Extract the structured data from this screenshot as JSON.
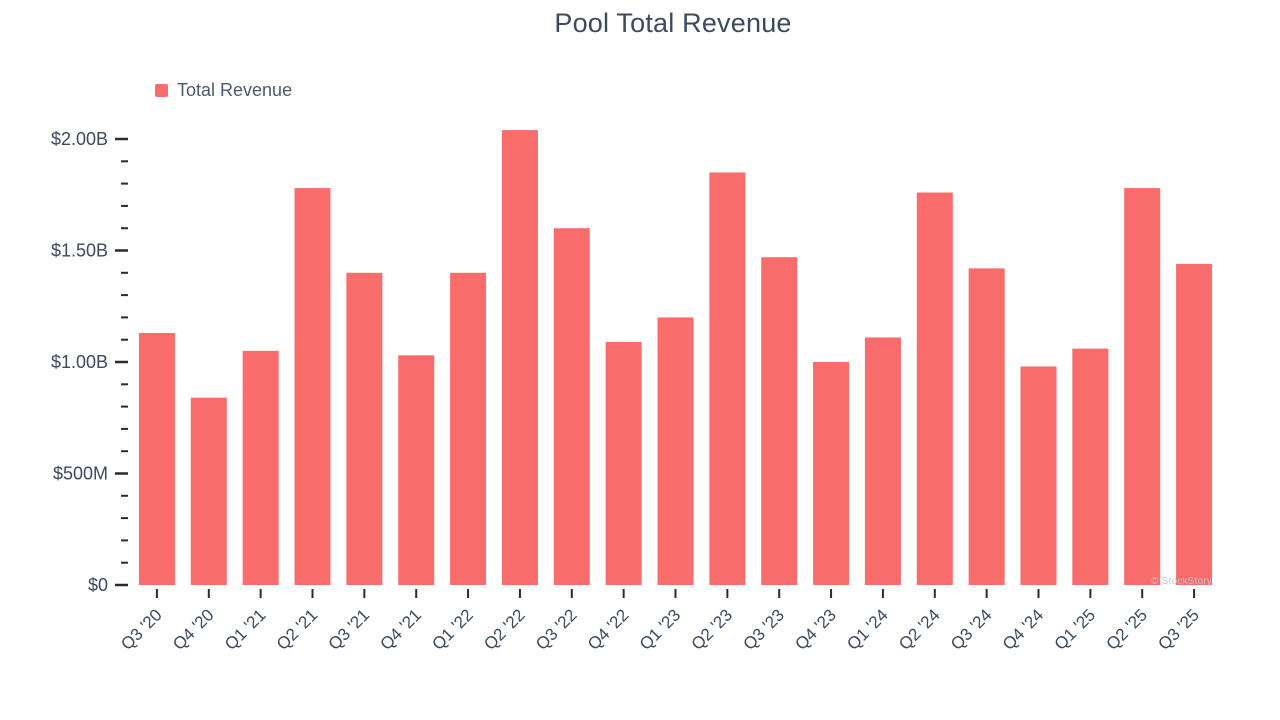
{
  "chart_data": {
    "type": "bar",
    "title": "Pool Total Revenue",
    "watermark": "© StockStory",
    "legend": {
      "label": "Total Revenue",
      "position": "top-left"
    },
    "categories": [
      "Q3 '20",
      "Q4 '20",
      "Q1 '21",
      "Q2 '21",
      "Q3 '21",
      "Q4 '21",
      "Q1 '22",
      "Q2 '22",
      "Q3 '22",
      "Q4 '22",
      "Q1 '23",
      "Q2 '23",
      "Q3 '23",
      "Q4 '23",
      "Q1 '24",
      "Q2 '24",
      "Q3 '24",
      "Q4 '24",
      "Q1 '25",
      "Q2 '25",
      "Q3 '25"
    ],
    "series": [
      {
        "name": "Total Revenue",
        "color": "#F96C6C",
        "unit": "USD billions",
        "values_billions": [
          1.13,
          0.84,
          1.05,
          1.78,
          1.4,
          1.03,
          1.4,
          2.04,
          1.6,
          1.09,
          1.2,
          1.85,
          1.47,
          1.0,
          1.11,
          1.76,
          1.42,
          0.98,
          1.06,
          1.78,
          1.44
        ]
      }
    ],
    "xlabel": "",
    "ylabel": "",
    "ylim_billions": [
      0,
      2.0
    ],
    "y_axis": {
      "major_ticks": [
        {
          "value": 0,
          "label": "$0"
        },
        {
          "value": 0.5,
          "label": "$500M"
        },
        {
          "value": 1.0,
          "label": "$1.00B"
        },
        {
          "value": 1.5,
          "label": "$1.50B"
        },
        {
          "value": 2.0,
          "label": "$2.00B"
        }
      ],
      "minor_tick_step": 0.1
    },
    "grid": false,
    "legend_position": "top-left",
    "colors": {
      "bar": "#F96C6C",
      "title": "#3C4A60",
      "axis_labels": "#3C4A60",
      "legend_text": "#4C5A70",
      "ticks": "#2B2B2B",
      "watermark": "#C2C7CF",
      "background": "#FFFFFF"
    }
  }
}
